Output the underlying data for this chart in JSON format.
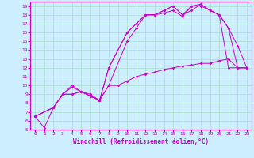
{
  "background_color": "#cceeff",
  "line_color": "#cc00cc",
  "grid_color": "#aaddcc",
  "xlabel": "Windchill (Refroidissement éolien,°C)",
  "xlim": [
    -0.5,
    23.5
  ],
  "ylim": [
    5,
    19.5
  ],
  "xticks": [
    0,
    1,
    2,
    3,
    4,
    5,
    6,
    7,
    8,
    9,
    10,
    11,
    12,
    13,
    14,
    15,
    16,
    17,
    18,
    19,
    20,
    21,
    22,
    23
  ],
  "yticks": [
    5,
    6,
    7,
    8,
    9,
    10,
    11,
    12,
    13,
    14,
    15,
    16,
    17,
    18,
    19
  ],
  "line1_x": [
    0,
    1,
    2,
    3,
    4,
    5,
    6,
    7,
    8,
    9,
    10,
    11,
    12,
    13,
    14,
    15,
    16,
    17,
    18,
    19,
    20,
    21,
    22,
    23
  ],
  "line1_y": [
    6.5,
    5.2,
    7.5,
    9.0,
    9.0,
    9.3,
    8.8,
    8.3,
    10.0,
    10.0,
    10.5,
    11.0,
    11.3,
    11.5,
    11.8,
    12.0,
    12.2,
    12.3,
    12.5,
    12.5,
    12.8,
    13.0,
    12.0,
    12.0
  ],
  "line2_x": [
    0,
    2,
    3,
    4,
    5,
    6,
    7,
    8,
    10,
    11,
    12,
    13,
    14,
    15,
    16,
    17,
    18,
    19,
    20,
    21,
    22,
    23
  ],
  "line2_y": [
    6.5,
    7.5,
    9.0,
    9.0,
    9.3,
    9.0,
    8.3,
    12.0,
    16.0,
    17.0,
    18.0,
    18.0,
    18.5,
    19.0,
    18.0,
    18.5,
    19.2,
    18.5,
    18.0,
    12.0,
    12.0,
    12.0
  ],
  "line3_x": [
    0,
    2,
    3,
    4,
    5,
    6,
    7,
    8,
    10,
    11,
    12,
    13,
    14,
    15,
    16,
    17,
    18,
    19,
    20,
    21,
    22,
    23
  ],
  "line3_y": [
    6.5,
    7.5,
    9.0,
    9.8,
    9.3,
    8.8,
    8.3,
    10.0,
    15.0,
    16.5,
    18.0,
    18.0,
    18.2,
    18.5,
    17.8,
    19.0,
    19.2,
    18.5,
    18.0,
    16.5,
    14.5,
    12.0
  ],
  "line4_x": [
    0,
    2,
    3,
    4,
    5,
    6,
    7,
    8,
    10,
    11,
    12,
    13,
    14,
    15,
    16,
    17,
    18,
    20,
    21,
    22,
    23
  ],
  "line4_y": [
    6.5,
    7.5,
    9.0,
    10.0,
    9.3,
    8.8,
    8.3,
    12.0,
    16.0,
    17.0,
    18.0,
    18.0,
    18.5,
    19.0,
    18.0,
    19.0,
    19.0,
    18.0,
    16.5,
    12.0,
    12.0
  ]
}
